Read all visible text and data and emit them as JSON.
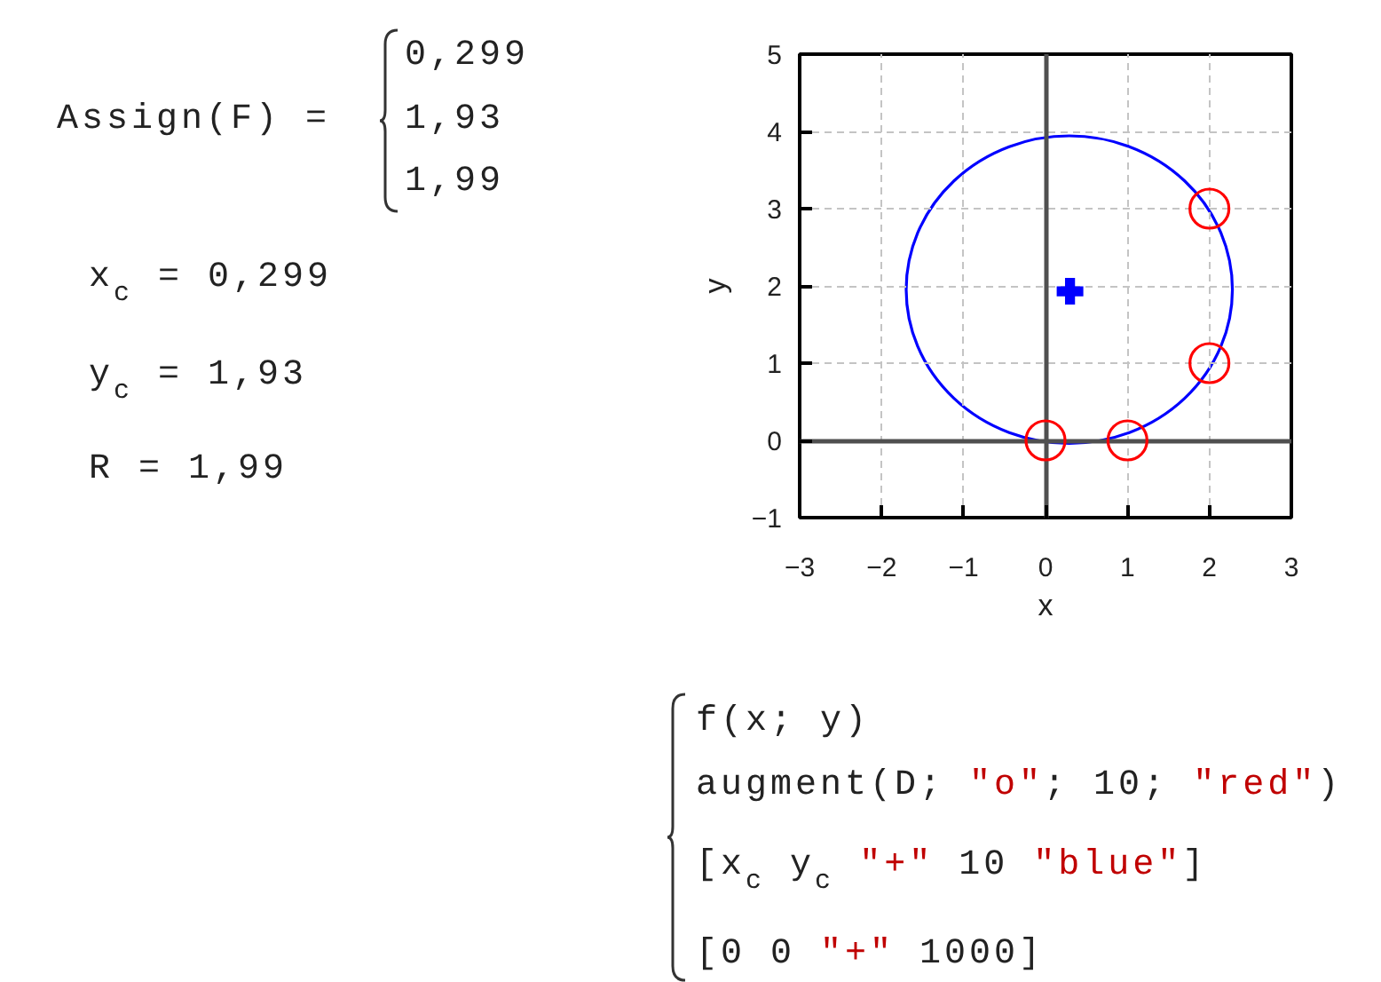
{
  "chart_data": {
    "type": "scatter",
    "xlabel": "x",
    "ylabel": "y",
    "xlim": [
      -3,
      3
    ],
    "ylim": [
      -1,
      5
    ],
    "xticks": [
      -3,
      -2,
      -1,
      0,
      1,
      2,
      3
    ],
    "yticks": [
      -1,
      0,
      1,
      2,
      3,
      4,
      5
    ],
    "grid": true,
    "series": [
      {
        "color": "#ff0000",
        "marker": "circle",
        "x": [
          0,
          1,
          2,
          2
        ],
        "values": [
          0,
          0,
          1,
          3
        ]
      },
      {
        "color": "#0000ff",
        "marker": "cross",
        "x": [
          0.299
        ],
        "values": [
          1.93
        ]
      }
    ],
    "annotations": [
      "Assign(F) =",
      "0,299",
      "1,93",
      "1,99",
      "x$_{c}$ = 0,299",
      "y$_{c}$ = 1,93",
      "R = 1,99",
      "f(x; y)",
      "augment(D; \"o\"; 10; \"red\")",
      "[x$_{c}$ y$_{c}$ \"+\" 10 \"blue\"]",
      "[0 0 \"+\" 1000]"
    ]
  }
}
